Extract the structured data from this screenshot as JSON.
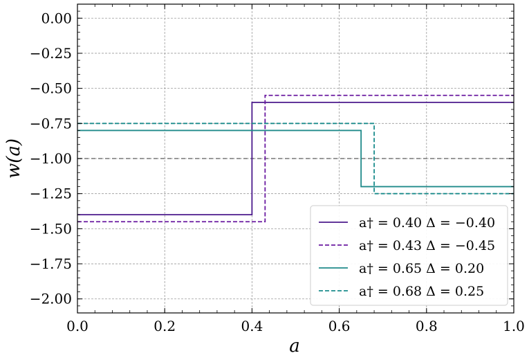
{
  "chart_data": {
    "type": "line",
    "xlabel": "a",
    "ylabel": "w(a)",
    "xlim": [
      0.0,
      1.0
    ],
    "ylim": [
      -2.1,
      0.1
    ],
    "xticks": [
      0.0,
      0.2,
      0.4,
      0.6,
      0.8,
      1.0
    ],
    "xtick_labels": [
      "0.0",
      "0.2",
      "0.4",
      "0.6",
      "0.8",
      "1.0"
    ],
    "yticks": [
      0.0,
      -0.25,
      -0.5,
      -0.75,
      -1.0,
      -1.25,
      -1.5,
      -1.75,
      -2.0
    ],
    "ytick_labels": [
      "0.00",
      "−0.25",
      "−0.50",
      "−0.75",
      "−1.00",
      "−1.25",
      "−1.50",
      "−1.75",
      "−2.00"
    ],
    "grid": true,
    "reference_line": {
      "y": -1.0,
      "style": "dashed",
      "color": "#777777"
    },
    "legend_position": "lower-right",
    "series": [
      {
        "name": "a† = 0.40 Δ = −0.40",
        "color": "#4b1a8c",
        "style": "solid",
        "x": [
          0.0,
          0.4,
          0.4,
          1.0
        ],
        "y": [
          -1.4,
          -1.4,
          -0.6,
          -0.6
        ]
      },
      {
        "name": "a† = 0.43 Δ = −0.45",
        "color": "#6a1aa0",
        "style": "dashed",
        "x": [
          0.0,
          0.43,
          0.43,
          1.0
        ],
        "y": [
          -1.45,
          -1.45,
          -0.55,
          -0.55
        ]
      },
      {
        "name": "a† = 0.65 Δ = 0.20",
        "color": "#1f8a8a",
        "style": "solid",
        "x": [
          0.0,
          0.65,
          0.65,
          1.0
        ],
        "y": [
          -0.8,
          -0.8,
          -1.2,
          -1.2
        ]
      },
      {
        "name": "a† = 0.68 Δ = 0.25",
        "color": "#1a8c8c",
        "style": "dashed",
        "x": [
          0.0,
          0.68,
          0.68,
          1.0
        ],
        "y": [
          -0.75,
          -0.75,
          -1.25,
          -1.25
        ]
      }
    ]
  }
}
